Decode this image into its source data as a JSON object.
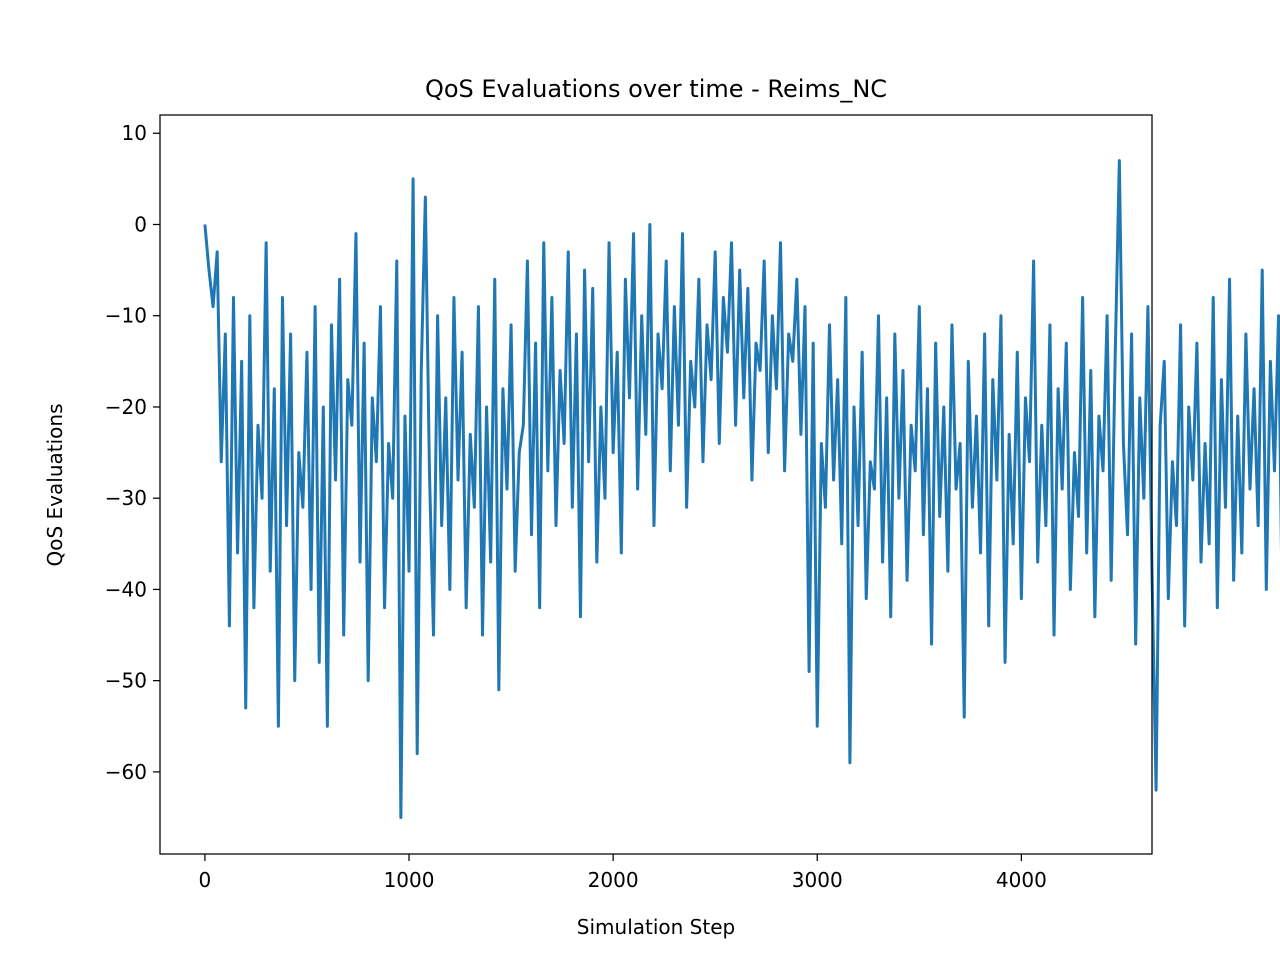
{
  "chart_data": {
    "type": "line",
    "title": "QoS Evaluations over time - Reims_NC",
    "xlabel": "Simulation Step",
    "ylabel": "QoS Evaluations",
    "xlim": [
      -220,
      4640
    ],
    "ylim": [
      -69,
      12
    ],
    "xticks": [
      0,
      1000,
      2000,
      3000,
      4000
    ],
    "yticks": [
      10,
      0,
      -10,
      -20,
      -30,
      -40,
      -50,
      -60
    ],
    "xtick_labels": [
      "0",
      "1000",
      "2000",
      "3000",
      "4000"
    ],
    "ytick_labels": [
      "10",
      "0",
      "−10",
      "−20",
      "−30",
      "−40",
      "−50",
      "−60"
    ],
    "grid": false,
    "series": [
      {
        "name": "QoS Evaluations",
        "color": "#1f77b4",
        "sample_step": 20,
        "x_start": 0,
        "values": [
          0,
          -5,
          -9,
          -3,
          -26,
          -12,
          -44,
          -8,
          -36,
          -15,
          -53,
          -10,
          -42,
          -22,
          -30,
          -2,
          -38,
          -18,
          -55,
          -8,
          -33,
          -12,
          -50,
          -25,
          -31,
          -14,
          -40,
          -9,
          -48,
          -20,
          -55,
          -11,
          -28,
          -6,
          -45,
          -17,
          -22,
          -1,
          -37,
          -13,
          -50,
          -19,
          -26,
          -9,
          -42,
          -24,
          -30,
          -4,
          -65,
          -21,
          -38,
          5,
          -58,
          -16,
          3,
          -27,
          -45,
          -10,
          -33,
          -19,
          -40,
          -8,
          -28,
          -14,
          -42,
          -23,
          -31,
          -9,
          -45,
          -20,
          -37,
          -6,
          -51,
          -18,
          -29,
          -11,
          -38,
          -25,
          -22,
          -4,
          -34,
          -13,
          -42,
          -2,
          -27,
          -8,
          -33,
          -16,
          -24,
          -3,
          -31,
          -12,
          -43,
          -5,
          -26,
          -7,
          -37,
          -20,
          -30,
          -2,
          -25,
          -14,
          -36,
          -6,
          -19,
          -1,
          -29,
          -10,
          -23,
          0,
          -33,
          -12,
          -18,
          -4,
          -27,
          -9,
          -22,
          -1,
          -31,
          -15,
          -20,
          -6,
          -26,
          -11,
          -17,
          -3,
          -24,
          -8,
          -14,
          -2,
          -22,
          -5,
          -19,
          -7,
          -28,
          -13,
          -16,
          -4,
          -25,
          -10,
          -18,
          -2,
          -27,
          -12,
          -15,
          -6,
          -23,
          -9,
          -49,
          -13,
          -55,
          -24,
          -31,
          -11,
          -28,
          -17,
          -35,
          -8,
          -59,
          -20,
          -33,
          -14,
          -41,
          -26,
          -29,
          -10,
          -37,
          -19,
          -43,
          -12,
          -30,
          -16,
          -39,
          -22,
          -27,
          -9,
          -34,
          -18,
          -46,
          -13,
          -32,
          -20,
          -38,
          -11,
          -29,
          -24,
          -54,
          -15,
          -31,
          -21,
          -36,
          -12,
          -44,
          -17,
          -28,
          -10,
          -48,
          -23,
          -35,
          -14,
          -41,
          -19,
          -26,
          -4,
          -37,
          -22,
          -33,
          -11,
          -45,
          -18,
          -29,
          -13,
          -40,
          -25,
          -32,
          -8,
          -36,
          -16,
          -43,
          -21,
          -27,
          -10,
          -39,
          -14,
          7,
          -24,
          -34,
          -12,
          -46,
          -19,
          -30,
          -9,
          -38,
          -62,
          -22,
          -15,
          -41,
          -26,
          -33,
          -11,
          -44,
          -20,
          -28,
          -13,
          -37,
          -24,
          -35,
          -8,
          -42,
          -17,
          -31,
          -6,
          -39,
          -21,
          -36,
          -12,
          -29,
          -18,
          -33,
          -5,
          -40,
          -15,
          -27,
          -10,
          -46,
          -23,
          -32,
          -14,
          -38,
          -19,
          -43,
          -9,
          -26,
          -16,
          -35,
          -7,
          -41,
          -22,
          -30,
          -11,
          -48,
          -18,
          -34,
          -13,
          -25,
          -8,
          -39,
          -20,
          -31,
          -10,
          -36,
          -15,
          -29,
          -5,
          -38,
          -21,
          -33,
          -12,
          -27,
          -56,
          -14,
          -35,
          -9,
          -48,
          -20,
          -60,
          -13,
          -29,
          -7,
          -37,
          -18,
          -31,
          -5,
          -26,
          -11,
          -34,
          -16,
          -22,
          -3,
          -27,
          -12,
          -19,
          -1,
          -24,
          -8,
          -17,
          2,
          -21,
          -6,
          -14,
          3,
          -18,
          -4,
          -11,
          8,
          -13,
          -2,
          -9,
          5,
          -15,
          -3,
          -12,
          1,
          -10,
          -4,
          -8,
          4,
          -6,
          -1,
          -9,
          2,
          -5,
          -3,
          -7,
          0,
          -4,
          -2,
          -5,
          0,
          -3,
          -1,
          0,
          0,
          0,
          0,
          0,
          0,
          0,
          0,
          0,
          0,
          0,
          0,
          0,
          0,
          0,
          0,
          0,
          0,
          0,
          0,
          0,
          0,
          0,
          0
        ]
      }
    ]
  }
}
